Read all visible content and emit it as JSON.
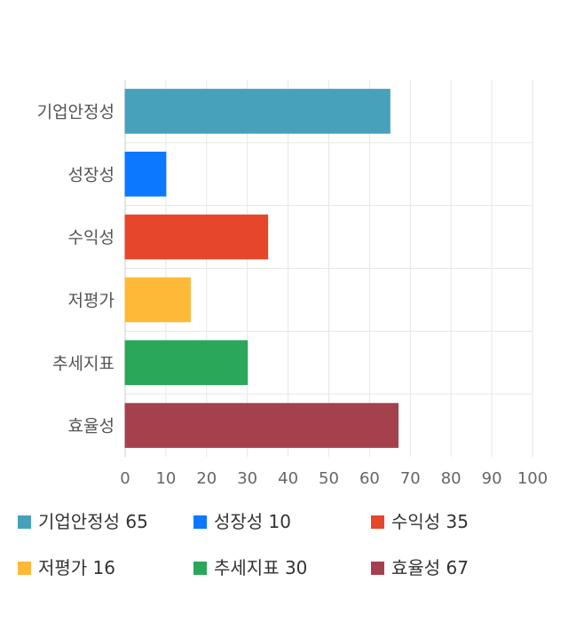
{
  "chart_data": {
    "type": "bar",
    "orientation": "horizontal",
    "categories": [
      "기업안정성",
      "성장성",
      "수익성",
      "저평가",
      "추세지표",
      "효율성"
    ],
    "values": [
      65,
      10,
      35,
      16,
      30,
      67
    ],
    "colors": [
      "#48a1bb",
      "#0b78ff",
      "#e64629",
      "#feb938",
      "#2aa758",
      "#a5404d"
    ],
    "xlim": [
      0,
      100
    ],
    "xticks": [
      0,
      10,
      20,
      30,
      40,
      50,
      60,
      70,
      80,
      90,
      100
    ],
    "grid": true,
    "legend_position": "bottom",
    "title": "",
    "xlabel": "",
    "ylabel": ""
  },
  "legend": {
    "items": [
      {
        "label": "기업안정성 65",
        "color": "#48a1bb"
      },
      {
        "label": "성장성 10",
        "color": "#0b78ff"
      },
      {
        "label": "수익성 35",
        "color": "#e64629"
      },
      {
        "label": "저평가 16",
        "color": "#feb938"
      },
      {
        "label": "추세지표 30",
        "color": "#2aa758"
      },
      {
        "label": "효율성 67",
        "color": "#a5404d"
      }
    ]
  }
}
